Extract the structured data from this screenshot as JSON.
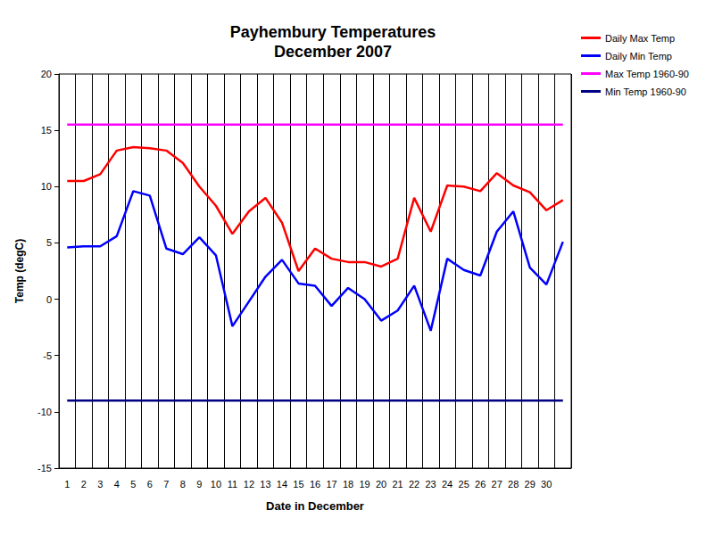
{
  "chart_data": {
    "type": "line",
    "title": "Payhembury Temperatures",
    "subtitle": "December 2007",
    "x_label": "Date in December",
    "y_label": "Temp (degC)",
    "categories": [
      1,
      2,
      3,
      4,
      5,
      6,
      7,
      8,
      9,
      10,
      11,
      12,
      13,
      14,
      15,
      16,
      17,
      18,
      19,
      20,
      21,
      22,
      23,
      24,
      25,
      26,
      27,
      28,
      29,
      30,
      null
    ],
    "series": [
      {
        "name": "Daily Max Temp",
        "color": "#ff0000",
        "values": [
          10.5,
          10.5,
          11.1,
          13.2,
          13.5,
          13.4,
          13.2,
          12.1,
          10.0,
          8.3,
          5.8,
          7.8,
          9.0,
          6.8,
          2.5,
          4.5,
          3.6,
          3.3,
          3.3,
          2.9,
          3.6,
          9.0,
          6.0,
          10.1,
          10.0,
          9.6,
          11.2,
          10.1,
          9.5,
          7.9,
          8.8
        ]
      },
      {
        "name": "Daily Min Temp",
        "color": "#0000ff",
        "values": [
          4.6,
          4.7,
          4.7,
          5.6,
          9.6,
          9.2,
          4.5,
          4.0,
          5.5,
          3.9,
          -2.4,
          -0.2,
          2.0,
          3.5,
          1.4,
          1.2,
          -0.6,
          1.0,
          0.0,
          -1.9,
          -1.0,
          1.2,
          -2.8,
          3.6,
          2.6,
          2.1,
          6.0,
          7.8,
          2.8,
          1.3,
          5.1
        ]
      },
      {
        "name": "Max Temp 1960-90",
        "color": "#ff00ff",
        "values": [
          15.5,
          15.5,
          15.5,
          15.5,
          15.5,
          15.5,
          15.5,
          15.5,
          15.5,
          15.5,
          15.5,
          15.5,
          15.5,
          15.5,
          15.5,
          15.5,
          15.5,
          15.5,
          15.5,
          15.5,
          15.5,
          15.5,
          15.5,
          15.5,
          15.5,
          15.5,
          15.5,
          15.5,
          15.5,
          15.5,
          15.5
        ]
      },
      {
        "name": "Min Temp 1960-90",
        "color": "#000080",
        "values": [
          -9,
          -9,
          -9,
          -9,
          -9,
          -9,
          -9,
          -9,
          -9,
          -9,
          -9,
          -9,
          -9,
          -9,
          -9,
          -9,
          -9,
          -9,
          -9,
          -9,
          -9,
          -9,
          -9,
          -9,
          -9,
          -9,
          -9,
          -9,
          -9,
          -9,
          -9
        ]
      }
    ],
    "ylim": [
      -15,
      20
    ],
    "yticks": [
      -15,
      -10,
      -5,
      0,
      5,
      10,
      15,
      20
    ],
    "grid": true,
    "legend": "top-right"
  }
}
